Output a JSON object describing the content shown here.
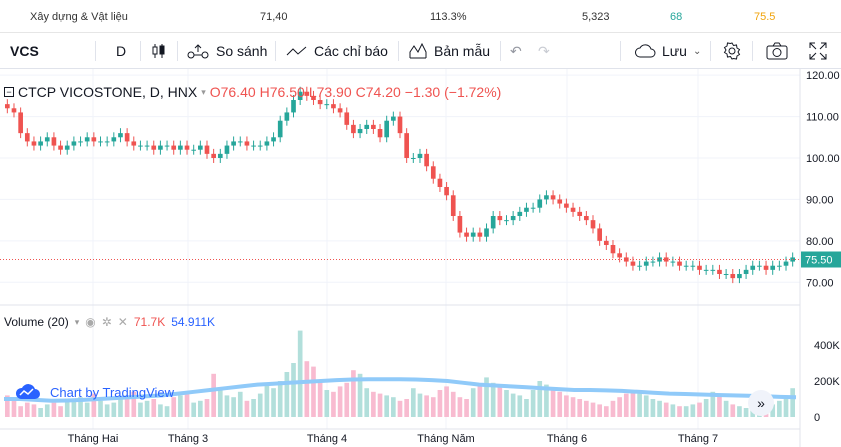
{
  "topbar": {
    "sector": "Xây dựng & Vật liệu",
    "col1": "71,40",
    "col2": "113.3%",
    "col3": "5,323",
    "col4": "68",
    "col5": "75.5",
    "col4_color": "#26a69a",
    "col5_color": "#f0a30a"
  },
  "toolbar": {
    "symbol": "VCS",
    "interval": "D",
    "compare_label": "So sánh",
    "indicators_label": "Các chỉ báo",
    "templates_label": "Bản mẫu",
    "save_label": "Lưu"
  },
  "legend": {
    "title": "CTCP VICOSTONE, D, HNX",
    "open": "O76.40",
    "high": "H76.50",
    "low": "L73.90",
    "close": "C74.20",
    "change": "−1.30 (−1.72%)"
  },
  "volume_legend": {
    "label": "Volume (20)",
    "value1": "71.7K",
    "value2": "54.911K"
  },
  "price_axis": [
    "120.00",
    "110.00",
    "100.00",
    "90.00",
    "80.00",
    "70.00"
  ],
  "volume_axis": [
    "400K",
    "200K",
    "0"
  ],
  "last_price": "75.50",
  "time_axis": [
    "Tháng Hai",
    "Tháng 3",
    "Tháng 4",
    "Tháng Năm",
    "Tháng 6",
    "Tháng 7"
  ],
  "branding": "Chart by TradingView",
  "colors": {
    "up": "#26a69a",
    "down": "#ef5350",
    "vol_up": "#b2dfdb",
    "vol_down": "#f8bbd0",
    "ma": "#90caf9"
  },
  "chart_data": {
    "type": "candlestick",
    "ylim": [
      65,
      121
    ],
    "close": [
      112,
      111,
      106,
      104,
      103,
      104,
      105,
      103,
      102,
      103,
      104,
      104,
      105,
      104,
      104,
      104,
      105,
      106,
      104,
      103,
      103,
      103,
      102,
      103,
      103,
      102,
      103,
      102,
      102,
      103,
      101,
      100,
      101,
      103,
      104,
      104,
      103,
      103,
      103,
      104,
      105,
      109,
      111,
      114,
      116,
      115,
      114,
      113,
      113,
      112,
      111,
      108,
      106,
      107,
      108,
      107,
      105,
      109,
      110,
      106,
      100,
      100,
      101,
      98,
      95,
      93,
      91,
      86,
      82,
      81,
      82,
      81,
      83,
      86,
      85,
      85,
      86,
      87,
      88,
      88,
      90,
      91,
      90,
      89,
      88,
      87,
      86,
      85,
      83,
      80,
      79,
      77,
      76,
      75,
      74,
      74,
      75,
      75,
      76,
      75,
      75,
      74,
      74,
      74,
      73,
      73,
      73,
      72,
      72,
      71,
      72,
      73,
      74,
      74,
      73,
      74,
      74,
      75,
      76
    ],
    "volume": [
      120,
      90,
      60,
      80,
      70,
      50,
      70,
      80,
      60,
      90,
      100,
      110,
      80,
      130,
      90,
      70,
      80,
      100,
      120,
      140,
      80,
      90,
      100,
      70,
      60,
      110,
      120,
      130,
      80,
      90,
      100,
      240,
      150,
      120,
      110,
      140,
      90,
      100,
      130,
      180,
      160,
      200,
      250,
      300,
      480,
      310,
      280,
      200,
      150,
      140,
      170,
      190,
      260,
      240,
      160,
      140,
      130,
      120,
      110,
      90,
      100,
      160,
      130,
      120,
      110,
      150,
      170,
      140,
      110,
      100,
      160,
      180,
      220,
      190,
      170,
      150,
      130,
      120,
      100,
      150,
      200,
      180,
      160,
      140,
      120,
      110,
      100,
      90,
      80,
      70,
      60,
      90,
      110,
      130,
      150,
      130,
      120,
      100,
      90,
      80,
      70,
      60,
      60,
      70,
      80,
      100,
      140,
      120,
      90,
      70,
      60,
      50,
      70,
      80,
      60,
      70,
      90,
      100,
      160
    ],
    "ma": [
      100,
      100,
      95,
      90,
      92,
      95,
      100,
      105,
      110,
      115,
      120,
      130,
      140,
      150,
      160,
      170,
      180,
      185,
      190,
      195,
      200,
      205,
      208,
      210,
      210,
      210,
      208,
      205,
      200,
      190,
      180,
      175,
      170,
      165,
      160,
      155,
      150,
      150,
      148,
      145,
      140,
      135,
      130,
      128,
      125,
      122,
      120,
      118,
      115,
      112,
      110
    ]
  }
}
